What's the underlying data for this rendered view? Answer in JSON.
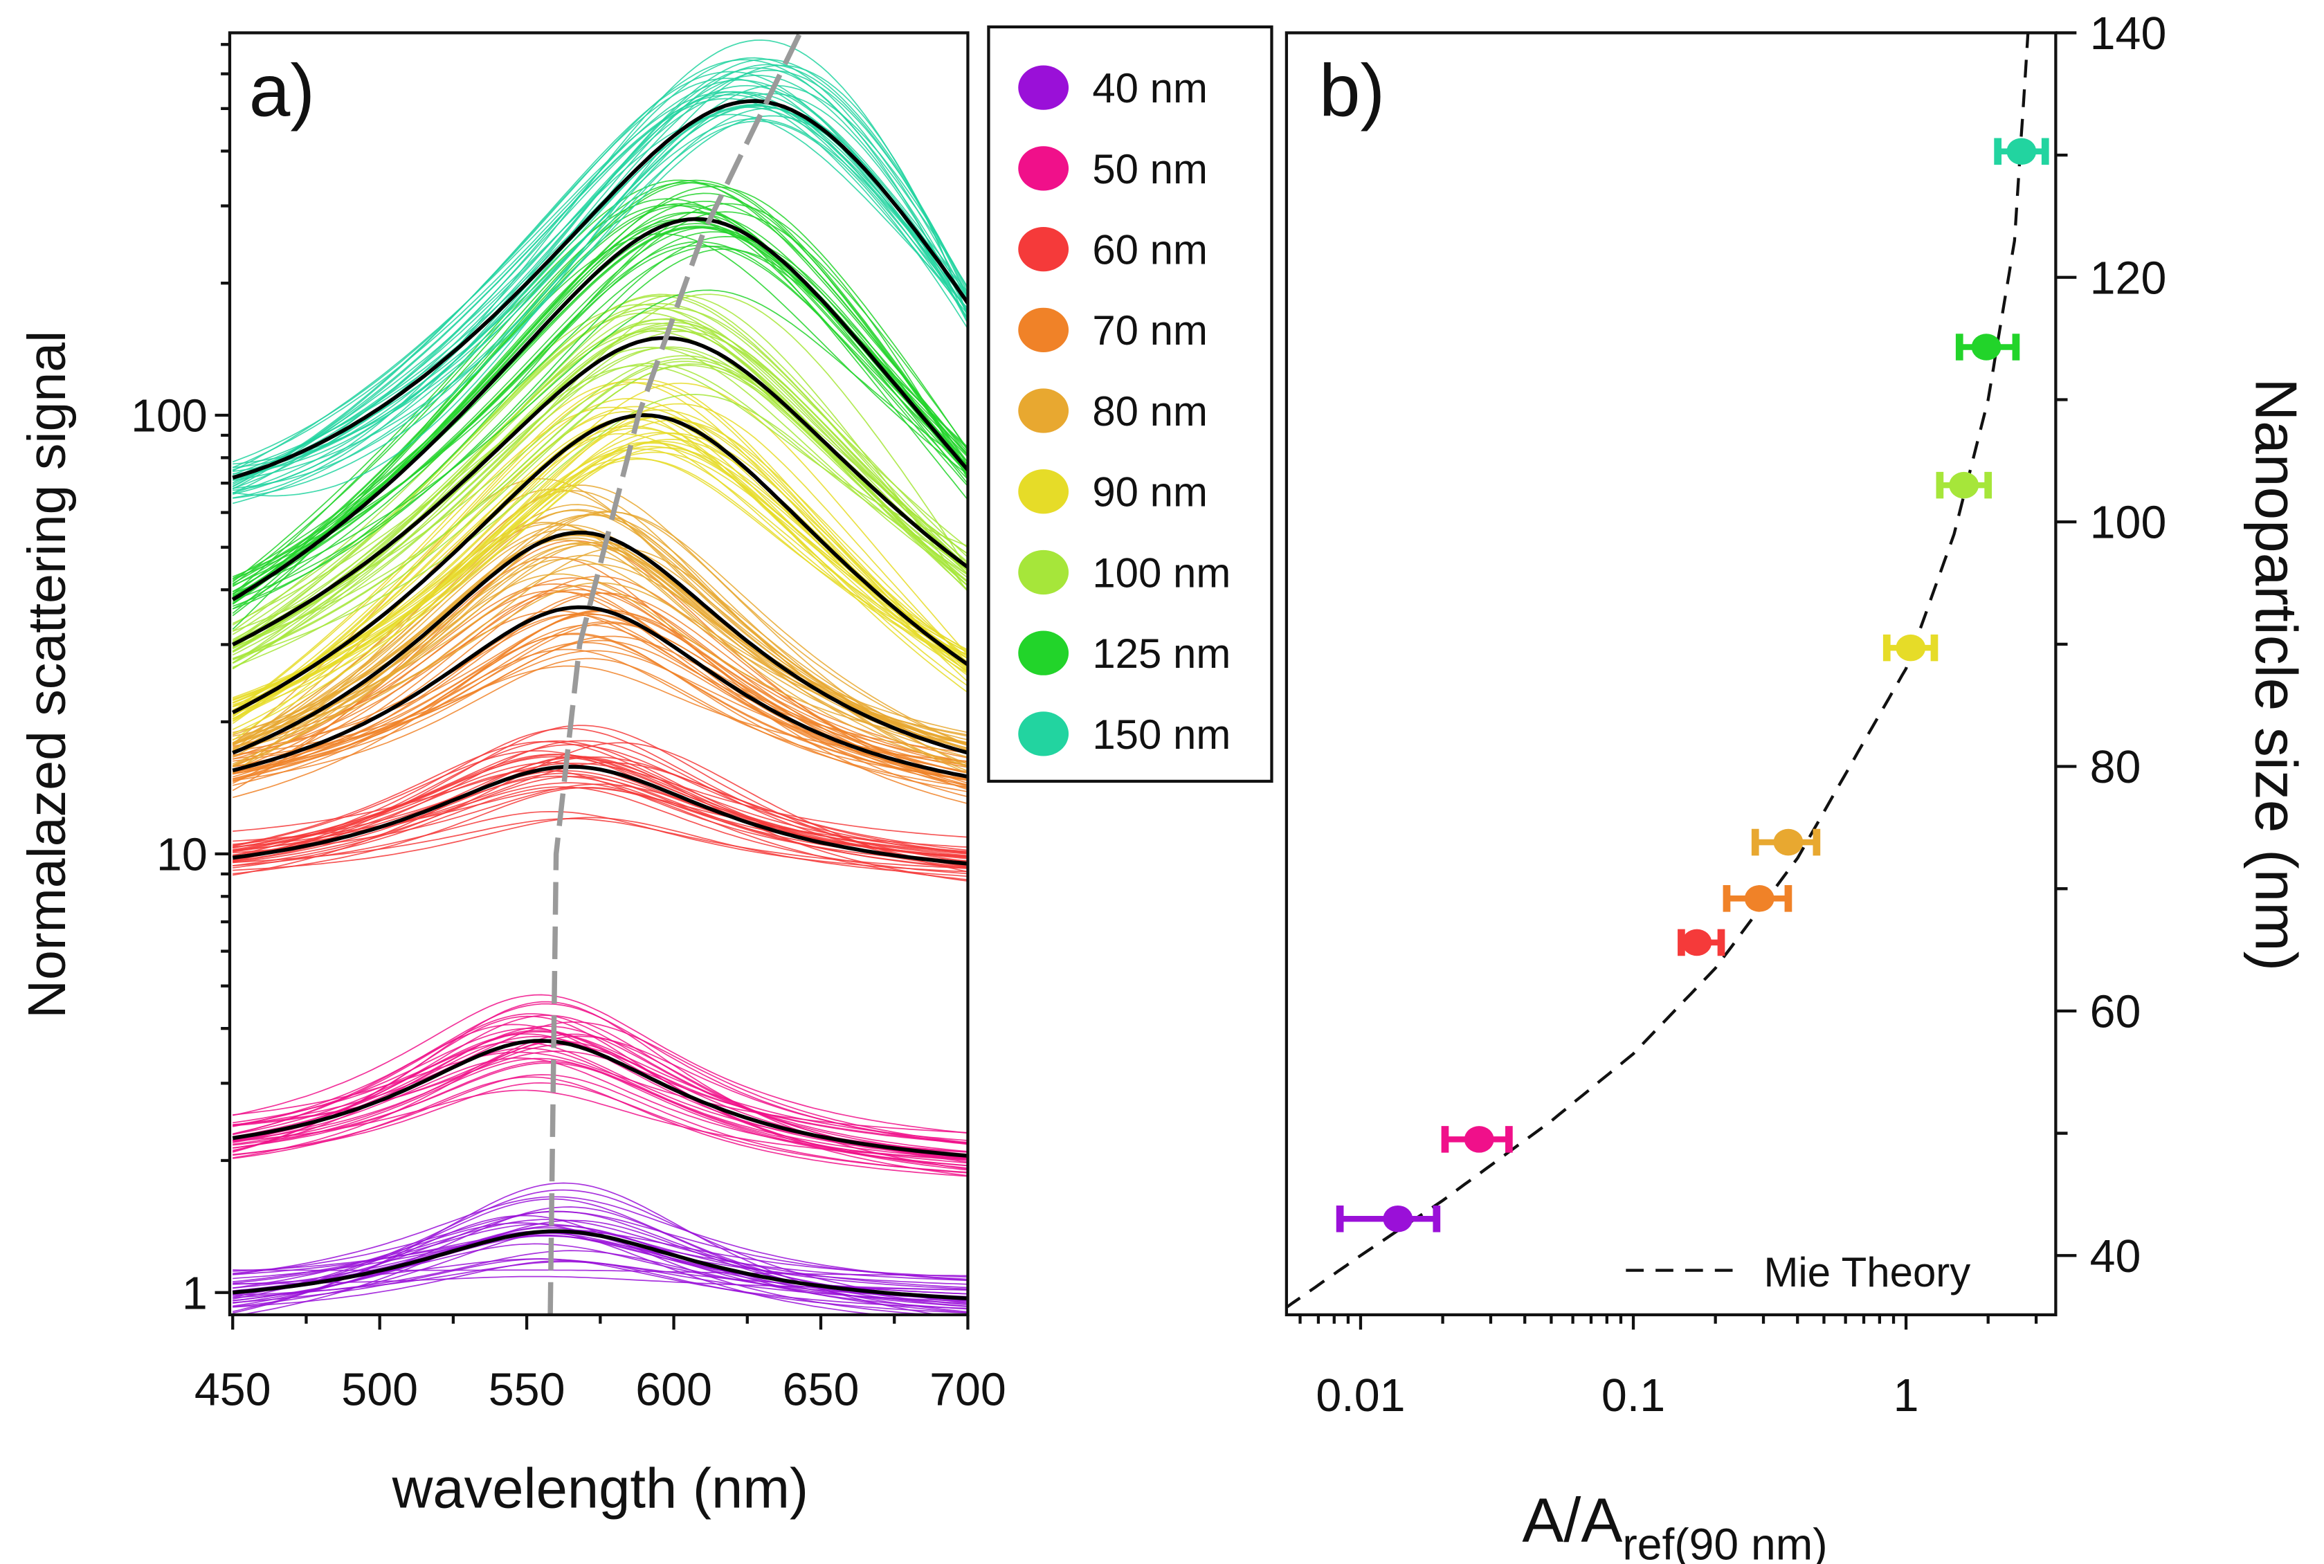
{
  "chart_data": [
    {
      "panel_label": "a)",
      "type": "line",
      "xlabel": "wavelength (nm)",
      "ylabel": "Normalazed scattering signal",
      "xlim": [
        450,
        700
      ],
      "ylim": [
        0.89,
        745
      ],
      "yscale": "log",
      "xticks": [
        "450",
        "500",
        "550",
        "600",
        "650",
        "700"
      ],
      "yticks": [
        "1",
        "10",
        "100"
      ],
      "legend_position": "outside-right",
      "series": [
        {
          "name": "40 nm",
          "color": "#9a10d8",
          "value_450": 1.0,
          "peak_wavelength": 560,
          "peak_value": 1.38,
          "value_700": 0.97,
          "width": 55
        },
        {
          "name": "50 nm",
          "color": "#f0108a",
          "value_450": 2.25,
          "peak_wavelength": 555,
          "peak_value": 3.75,
          "value_700": 2.05,
          "width": 50
        },
        {
          "name": "60 nm",
          "color": "#f53a3a",
          "value_450": 9.8,
          "peak_wavelength": 565,
          "peak_value": 15.8,
          "value_700": 9.5,
          "width": 55
        },
        {
          "name": "70 nm",
          "color": "#f08228",
          "value_450": 15.5,
          "peak_wavelength": 568,
          "peak_value": 36.5,
          "value_700": 15,
          "width": 52
        },
        {
          "name": "80 nm",
          "color": "#e8a830",
          "value_450": 17,
          "peak_wavelength": 568,
          "peak_value": 54,
          "value_700": 17,
          "width": 52
        },
        {
          "name": "90 nm",
          "color": "#e6dc28",
          "value_450": 21,
          "peak_wavelength": 590,
          "peak_value": 100,
          "value_700": 27,
          "width": 58
        },
        {
          "name": "100 nm",
          "color": "#a6e63a",
          "value_450": 30,
          "peak_wavelength": 597,
          "peak_value": 150,
          "value_700": 45,
          "width": 60
        },
        {
          "name": "125 nm",
          "color": "#22d42a",
          "value_450": 38,
          "peak_wavelength": 608,
          "peak_value": 280,
          "value_700": 75,
          "width": 60
        },
        {
          "name": "150 nm",
          "color": "#22d4a0",
          "value_450": 72,
          "peak_wavelength": 628,
          "peak_value": 520,
          "value_700": 180,
          "width": 62
        }
      ],
      "peak_trend_line": {
        "color": "#9a9a9a",
        "points": [
          [
            558,
            0.89
          ],
          [
            560,
            10
          ],
          [
            568,
            30
          ],
          [
            588,
            100
          ],
          [
            610,
            260
          ],
          [
            643,
            745
          ]
        ]
      }
    },
    {
      "panel_label": "b)",
      "type": "scatter",
      "xlabel": "A/A",
      "xlabel_subscript": "ref(90 nm)",
      "ylabel": "Nanoparticle size (nm)",
      "xscale": "log",
      "xlim": [
        0.0053,
        3.5
      ],
      "ylim": [
        35,
        140
      ],
      "xticks": [
        "0.01",
        "0.1",
        "1"
      ],
      "yticks": [
        "40",
        "60",
        "80",
        "100",
        "120",
        "140"
      ],
      "yaxis_side": "right",
      "legend_position": "bottom-right",
      "points": [
        {
          "size": 40,
          "color": "#9a10d8",
          "x": 0.0137,
          "y": 43,
          "x_err": [
            0.0084,
            0.019
          ]
        },
        {
          "size": 50,
          "color": "#f0108a",
          "x": 0.0272,
          "y": 49.5,
          "x_err": [
            0.0204,
            0.035
          ]
        },
        {
          "size": 60,
          "color": "#f53a3a",
          "x": 0.171,
          "y": 65.6,
          "x_err": [
            0.15,
            0.21
          ]
        },
        {
          "size": 70,
          "color": "#f08228",
          "x": 0.29,
          "y": 69.2,
          "x_err": [
            0.22,
            0.37
          ]
        },
        {
          "size": 80,
          "color": "#e8a830",
          "x": 0.37,
          "y": 73.8,
          "x_err": [
            0.28,
            0.47
          ]
        },
        {
          "size": 90,
          "color": "#e6dc28",
          "x": 1.04,
          "y": 89.7,
          "x_err": [
            0.85,
            1.27
          ]
        },
        {
          "size": 100,
          "color": "#a6e63a",
          "x": 1.63,
          "y": 103,
          "x_err": [
            1.33,
            2.0
          ]
        },
        {
          "size": 125,
          "color": "#22d42a",
          "x": 1.97,
          "y": 114.3,
          "x_err": [
            1.57,
            2.53
          ]
        },
        {
          "size": 150,
          "color": "#22d4a0",
          "x": 2.65,
          "y": 130.3,
          "x_err": [
            2.17,
            3.24
          ]
        }
      ],
      "theory_curve": {
        "name": "Mie Theory",
        "style": "dashed",
        "points": [
          [
            0.0053,
            35.7
          ],
          [
            0.01,
            40
          ],
          [
            0.02,
            44.5
          ],
          [
            0.05,
            51
          ],
          [
            0.1,
            56.5
          ],
          [
            0.2,
            63.5
          ],
          [
            0.4,
            72.5
          ],
          [
            0.7,
            82
          ],
          [
            1,
            88
          ],
          [
            1.5,
            99
          ],
          [
            2,
            110
          ],
          [
            2.5,
            123
          ],
          [
            2.8,
            140
          ]
        ]
      }
    }
  ]
}
